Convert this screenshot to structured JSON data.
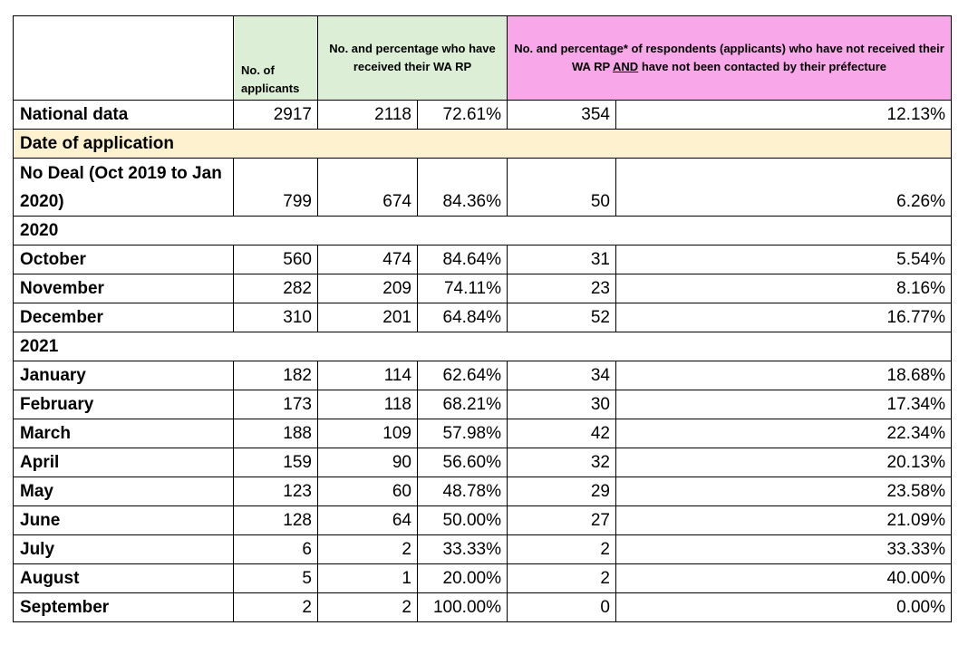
{
  "headers": {
    "applicants": "No. of applicants",
    "received": "No. and percentage who have received their WA RP",
    "not_contacted_pre": "No. and percentage* of respondents (applicants) who have not received their WA RP ",
    "not_contacted_and": "AND",
    "not_contacted_post": " have not been contacted by their préfecture"
  },
  "national": {
    "label": "National data",
    "applicants": "2917",
    "received": "2118",
    "received_pct": "72.61%",
    "not_contacted": "354",
    "not_contacted_pct": "12.13%"
  },
  "section_label": "Date of application",
  "no_deal": {
    "label": "No Deal (Oct 2019 to Jan 2020)",
    "applicants": "799",
    "received": "674",
    "received_pct": "84.36%",
    "not_contacted": "50",
    "not_contacted_pct": "6.26%"
  },
  "year_2020": "2020",
  "rows_2020": [
    {
      "label": "October",
      "applicants": "560",
      "received": "474",
      "received_pct": "84.64%",
      "not_contacted": "31",
      "not_contacted_pct": "5.54%"
    },
    {
      "label": "November",
      "applicants": "282",
      "received": "209",
      "received_pct": "74.11%",
      "not_contacted": "23",
      "not_contacted_pct": "8.16%"
    },
    {
      "label": "December",
      "applicants": "310",
      "received": "201",
      "received_pct": "64.84%",
      "not_contacted": "52",
      "not_contacted_pct": "16.77%"
    }
  ],
  "year_2021": "2021",
  "rows_2021": [
    {
      "label": "January",
      "applicants": "182",
      "received": "114",
      "received_pct": "62.64%",
      "not_contacted": "34",
      "not_contacted_pct": "18.68%"
    },
    {
      "label": "February",
      "applicants": "173",
      "received": "118",
      "received_pct": "68.21%",
      "not_contacted": "30",
      "not_contacted_pct": "17.34%"
    },
    {
      "label": "March",
      "applicants": "188",
      "received": "109",
      "received_pct": "57.98%",
      "not_contacted": "42",
      "not_contacted_pct": "22.34%"
    },
    {
      "label": "April",
      "applicants": "159",
      "received": "90",
      "received_pct": "56.60%",
      "not_contacted": "32",
      "not_contacted_pct": "20.13%"
    },
    {
      "label": "May",
      "applicants": "123",
      "received": "60",
      "received_pct": "48.78%",
      "not_contacted": "29",
      "not_contacted_pct": "23.58%"
    },
    {
      "label": "June",
      "applicants": "128",
      "received": "64",
      "received_pct": "50.00%",
      "not_contacted": "27",
      "not_contacted_pct": "21.09%"
    },
    {
      "label": "July",
      "applicants": "6",
      "received": "2",
      "received_pct": "33.33%",
      "not_contacted": "2",
      "not_contacted_pct": "33.33%"
    },
    {
      "label": "August",
      "applicants": "5",
      "received": "1",
      "received_pct": "20.00%",
      "not_contacted": "2",
      "not_contacted_pct": "40.00%"
    },
    {
      "label": "September",
      "applicants": "2",
      "received": "2",
      "received_pct": "100.00%",
      "not_contacted": "0",
      "not_contacted_pct": "0.00%"
    }
  ]
}
